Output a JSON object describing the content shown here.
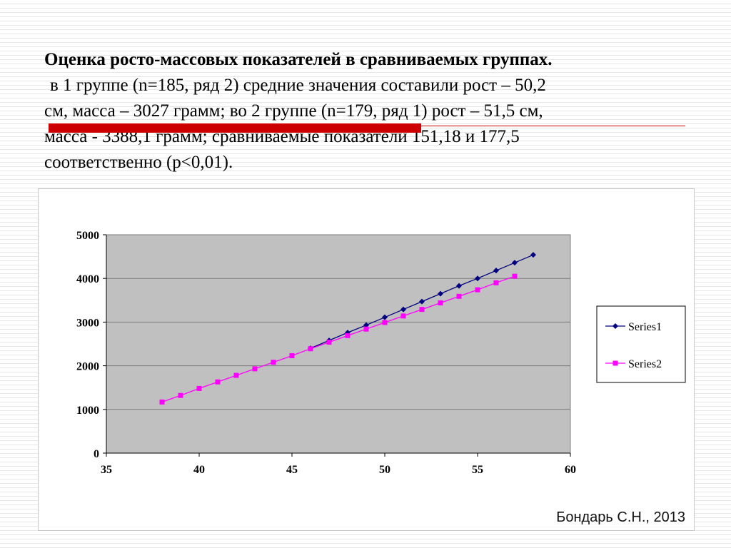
{
  "slide": {
    "heading": "Оценка росто-массовых показателей в сравниваемых группах.",
    "body_line1": "в 1 группе (n=185, ряд 2) средние значения составили рост – 50,2",
    "body_line2": "см, масса – 3027 грамм; во 2 группе (n=179, ряд 1) рост – 51,5 см,",
    "body_line3": "масса - 3388,1 грамм; сравниваемые показатели 151,18 и 177,5",
    "body_line4": "соответственно (p<0,01).",
    "footer": "Бондарь С.Н., 2013"
  },
  "colors": {
    "accent": "#cc0000",
    "plot_background": "#c0c0c0",
    "series1": "#000080",
    "series2": "#ff00ff"
  },
  "chart_data": {
    "type": "line",
    "title": "",
    "xlabel": "",
    "ylabel": "",
    "xlim": [
      35,
      60
    ],
    "ylim": [
      0,
      5000
    ],
    "x_ticks": [
      "35",
      "40",
      "45",
      "50",
      "55",
      "60"
    ],
    "y_ticks": [
      "0",
      "1000",
      "2000",
      "3000",
      "4000",
      "5000"
    ],
    "grid": "horizontal",
    "legend_position": "right",
    "series": [
      {
        "name": "Series1",
        "marker": "diamond",
        "color": "#000080",
        "x": [
          46,
          47,
          48,
          49,
          50,
          51,
          52,
          53,
          54,
          55,
          56,
          57,
          58
        ],
        "y": [
          2400,
          2580,
          2760,
          2930,
          3110,
          3290,
          3470,
          3650,
          3830,
          4000,
          4180,
          4360,
          4540
        ]
      },
      {
        "name": "Series2",
        "marker": "square",
        "color": "#ff00ff",
        "x": [
          38,
          39,
          40,
          41,
          42,
          43,
          44,
          45,
          46,
          47,
          48,
          49,
          50,
          51,
          52,
          53,
          54,
          55,
          56,
          57
        ],
        "y": [
          1170,
          1320,
          1480,
          1630,
          1780,
          1930,
          2080,
          2230,
          2390,
          2540,
          2690,
          2840,
          2990,
          3140,
          3290,
          3440,
          3590,
          3740,
          3900,
          4050
        ]
      }
    ]
  }
}
